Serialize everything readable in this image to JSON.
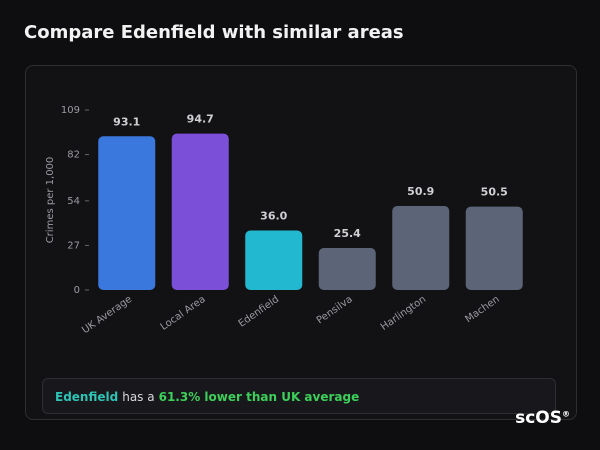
{
  "title": "Compare Edenfield with similar areas",
  "chart_data": {
    "type": "bar",
    "y_label": "Crimes per 1,000",
    "categories": [
      "UK Average",
      "Local Area",
      "Edenfield",
      "Pensilva",
      "Harlington",
      "Machen"
    ],
    "values": [
      93.1,
      94.7,
      36.0,
      25.4,
      50.9,
      50.5
    ],
    "value_labels": [
      "93.1",
      "94.7",
      "36.0",
      "25.4",
      "50.9",
      "50.5"
    ],
    "colors": [
      "#3a78dd",
      "#7c4fd8",
      "#22b8cf",
      "#5c6577",
      "#5c6577",
      "#5c6577"
    ],
    "ylim": [
      0,
      109
    ],
    "yticks": [
      0,
      27,
      54,
      82,
      109
    ]
  },
  "summary": {
    "area": "Edenfield",
    "text": "has a",
    "comparison": "61.3% lower than UK average"
  },
  "logo": {
    "name": "scOS",
    "mark": "®"
  }
}
